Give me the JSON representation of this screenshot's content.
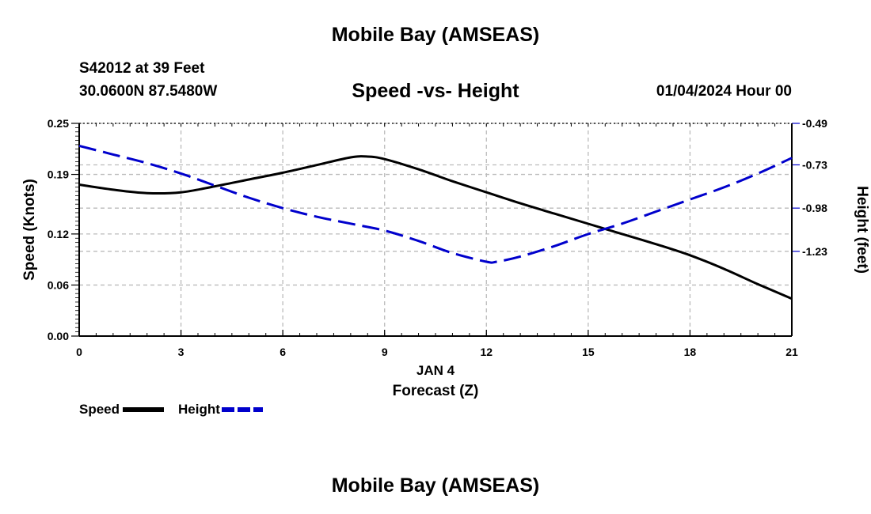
{
  "header": {
    "main_title": "Mobile Bay (AMSEAS)",
    "station": "S42012 at 39 Feet",
    "coords": "30.0600N  87.5480W",
    "date": "01/04/2024 Hour 00",
    "footer_title": "Mobile Bay (AMSEAS)"
  },
  "colors": {
    "speed": "#000000",
    "height": "#0000cc",
    "grid": "#bbbbbb"
  },
  "chart_data": {
    "type": "line",
    "title": "Speed -vs- Height",
    "xlabel": "Forecast (Z)",
    "xlabel_date": "JAN 4",
    "ylabel_left": "Speed (Knots)",
    "ylabel_right": "Height (feet)",
    "x_ticks": [
      "0",
      "3",
      "6",
      "9",
      "12",
      "15",
      "18",
      "21"
    ],
    "x_range": [
      0,
      21
    ],
    "y_left_ticks": [
      "0.00",
      "0.06",
      "0.12",
      "0.19",
      "0.25"
    ],
    "y_left_range": [
      0,
      0.25
    ],
    "y_right_ticks": [
      "-0.49",
      "-0.73",
      "-0.98",
      "-1.23"
    ],
    "y_right_range": [
      -1.72,
      -0.49
    ],
    "grid": true,
    "legend_position": "bottom-left",
    "series": [
      {
        "name": "Speed",
        "axis": "left",
        "style": "solid",
        "x": [
          0,
          1,
          2,
          3,
          4,
          5,
          6,
          7,
          8,
          8.5,
          9,
          10,
          11,
          12,
          13,
          14,
          15,
          16,
          17,
          18,
          19,
          20,
          21
        ],
        "values": [
          0.178,
          0.172,
          0.168,
          0.169,
          0.176,
          0.184,
          0.192,
          0.201,
          0.21,
          0.211,
          0.208,
          0.196,
          0.182,
          0.169,
          0.156,
          0.144,
          0.132,
          0.12,
          0.108,
          0.095,
          0.079,
          0.061,
          0.044
        ]
      },
      {
        "name": "Height",
        "axis": "right",
        "style": "dashed",
        "x": [
          0,
          1,
          2,
          3,
          4,
          5,
          6,
          7,
          8,
          9,
          10,
          11,
          12,
          12.3,
          13,
          14,
          15,
          16,
          17,
          18,
          19,
          20,
          21
        ],
        "values": [
          -0.62,
          -0.67,
          -0.72,
          -0.78,
          -0.85,
          -0.92,
          -0.98,
          -1.03,
          -1.07,
          -1.11,
          -1.17,
          -1.24,
          -1.29,
          -1.29,
          -1.26,
          -1.2,
          -1.13,
          -1.07,
          -1.0,
          -0.93,
          -0.86,
          -0.78,
          -0.69
        ]
      }
    ]
  }
}
